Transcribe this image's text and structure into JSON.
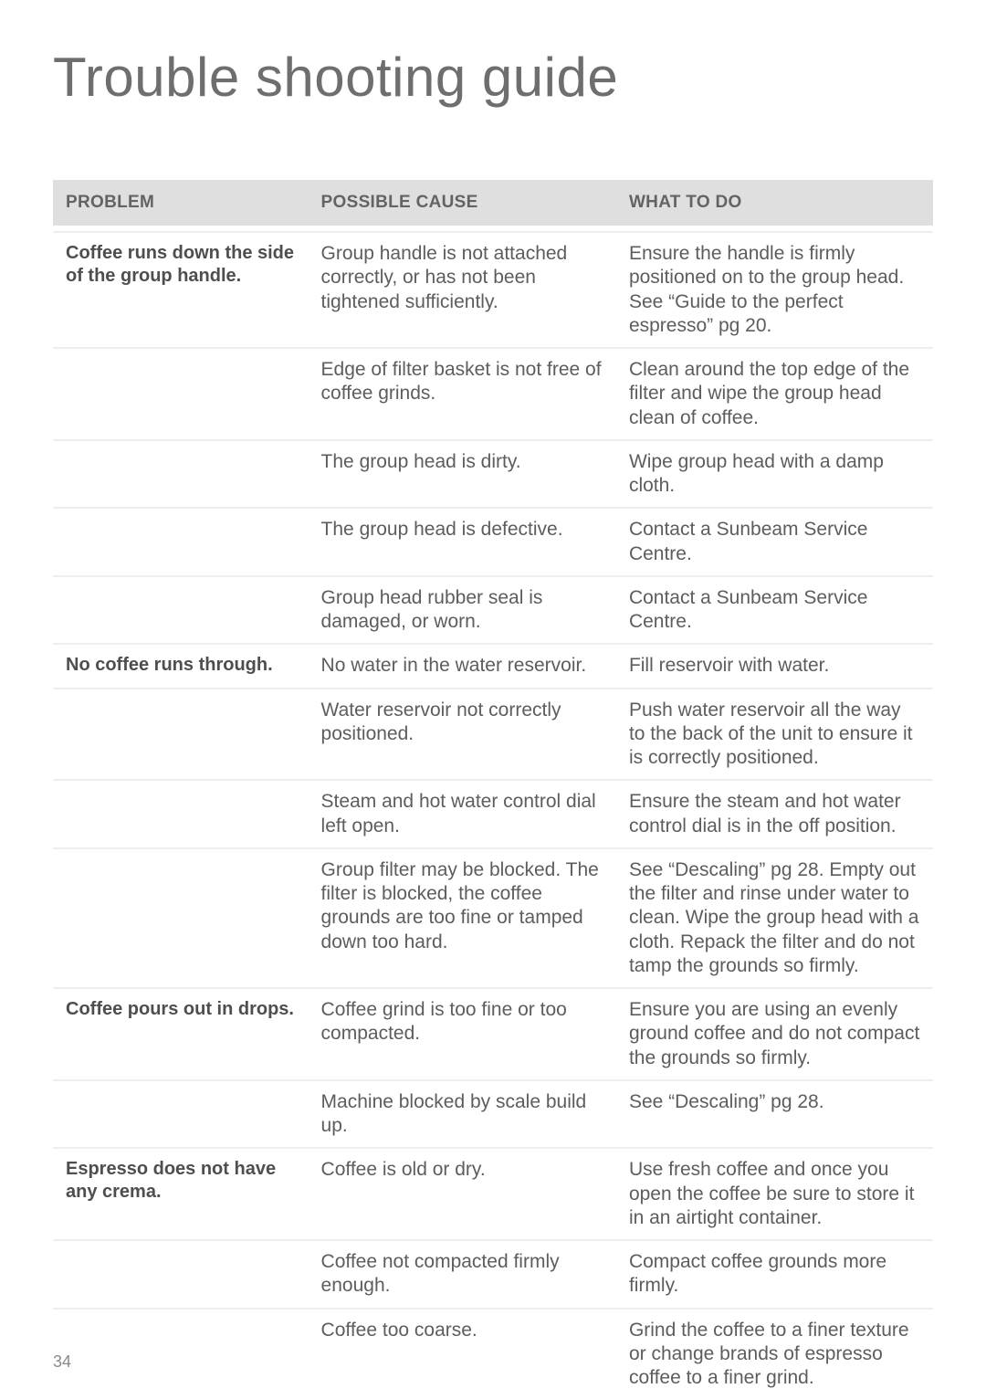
{
  "page_title": "Trouble shooting guide",
  "page_number": "34",
  "headers": {
    "problem": "PROBLEM",
    "cause": "POSSIBLE CAUSE",
    "action": "WHAT TO DO"
  },
  "rows": [
    {
      "problem": "Coffee runs down the side of the group handle.",
      "cause": "Group handle is not attached correctly, or has not been tightened sufficiently.",
      "action": "Ensure the handle is firmly positioned on to the group head. See “Guide to the perfect espresso” pg 20."
    },
    {
      "problem": "",
      "cause": "Edge of filter basket is not free of coffee grinds.",
      "action": "Clean around the top edge of the filter and wipe the group head clean of coffee."
    },
    {
      "problem": "",
      "cause": "The group head is dirty.",
      "action": "Wipe group head with a damp cloth."
    },
    {
      "problem": "",
      "cause": "The group head is defective.",
      "action": "Contact a Sunbeam Service Centre."
    },
    {
      "problem": "",
      "cause": "Group head rubber seal is damaged, or worn.",
      "action": "Contact a Sunbeam Service Centre."
    },
    {
      "problem": "No coffee runs through.",
      "cause": "No water in the water reservoir.",
      "action": "Fill reservoir with water."
    },
    {
      "problem": "",
      "cause": "Water reservoir not correctly positioned.",
      "action": "Push water reservoir all the way to the back of the unit to ensure it is correctly positioned."
    },
    {
      "problem": "",
      "cause": "Steam and hot water control dial left open.",
      "action": "Ensure the steam and hot water control dial is in the off position."
    },
    {
      "problem": "",
      "cause": "Group filter may be blocked. The filter is blocked, the coffee grounds are too fine or tamped down too hard.",
      "action": "See “Descaling” pg 28. Empty out the filter and rinse under water to clean. Wipe the group head with a cloth. Repack the filter and do not tamp the grounds so firmly."
    },
    {
      "problem": "Coffee pours out in drops.",
      "cause": "Coffee grind is too fine or too compacted.",
      "action": "Ensure you are using an evenly ground coffee and do not compact the grounds so firmly."
    },
    {
      "problem": "",
      "cause": "Machine blocked by scale build up.",
      "action": "See “Descaling” pg 28."
    },
    {
      "problem": "Espresso does not have any crema.",
      "cause": "Coffee is old or dry.",
      "action": "Use fresh coffee and once you open the coffee be sure to store it in an airtight container."
    },
    {
      "problem": "",
      "cause": "Coffee not compacted firmly enough.",
      "action": "Compact coffee grounds more firmly."
    },
    {
      "problem": "",
      "cause": "Coffee too coarse.",
      "action": "Grind the coffee to a finer texture or change brands of espresso coffee to a finer grind."
    }
  ]
}
